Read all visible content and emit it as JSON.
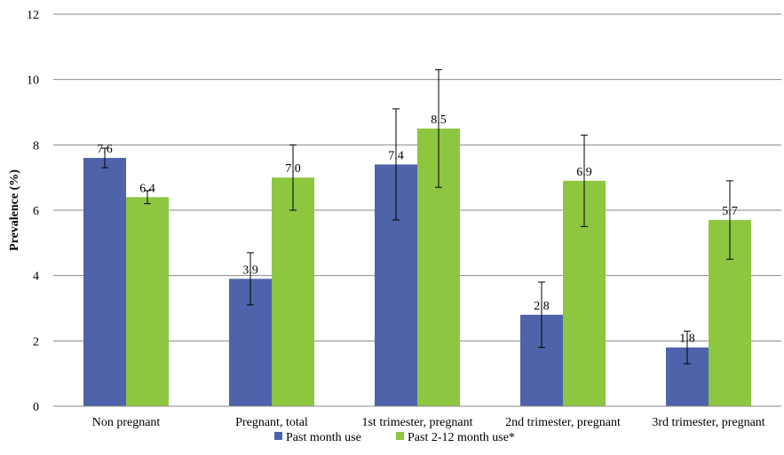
{
  "chart_data": {
    "type": "bar",
    "title": "",
    "xlabel": "",
    "ylabel": "Prevalence (%)",
    "ylim": [
      0,
      12
    ],
    "yticks": [
      "0",
      "2",
      "4",
      "6",
      "8",
      "10",
      "12"
    ],
    "grid": "horizontal",
    "legend_position": "bottom",
    "categories": [
      "Non pregnant",
      "Pregnant, total",
      "1st trimester, pregnant",
      "2nd trimester, pregnant",
      "3rd trimester, pregnant"
    ],
    "series": [
      {
        "name": "Past month use",
        "color": "#4F63AA",
        "values": [
          7.6,
          3.9,
          7.4,
          2.8,
          1.8
        ],
        "labels": [
          "7.6",
          "3.9",
          "7.4",
          "2.8",
          "1.8"
        ],
        "error_low": [
          7.3,
          3.1,
          5.7,
          1.8,
          1.3
        ],
        "error_high": [
          7.9,
          4.7,
          9.1,
          3.8,
          2.3
        ]
      },
      {
        "name": "Past 2-12 month use*",
        "color": "#8DC63F",
        "values": [
          6.4,
          7.0,
          8.5,
          6.9,
          5.7
        ],
        "labels": [
          "6.4",
          "7.0",
          "8.5",
          "6.9",
          "5.7"
        ],
        "error_low": [
          6.2,
          6.0,
          6.7,
          5.5,
          4.5
        ],
        "error_high": [
          6.6,
          8.0,
          10.3,
          8.3,
          6.9
        ]
      }
    ]
  }
}
